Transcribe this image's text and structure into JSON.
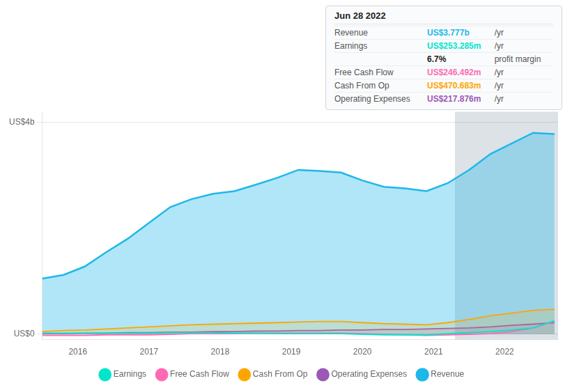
{
  "chart_data": {
    "type": "line",
    "x": [
      2015.5,
      2015.8,
      2016.1,
      2016.4,
      2016.7,
      2017.0,
      2017.3,
      2017.6,
      2017.9,
      2018.2,
      2018.5,
      2018.8,
      2019.1,
      2019.4,
      2019.7,
      2020.0,
      2020.3,
      2020.6,
      2020.9,
      2021.2,
      2021.5,
      2021.8,
      2022.1,
      2022.4,
      2022.7
    ],
    "xlim": [
      2015.5,
      2022.75
    ],
    "xticks": [
      2016,
      2017,
      2018,
      2019,
      2020,
      2021,
      2022
    ],
    "ylim": [
      -0.1,
      4.2
    ],
    "yticks": [
      {
        "value": 0,
        "label": "US$0"
      },
      {
        "value": 4,
        "label": "US$4b"
      }
    ],
    "grid": true,
    "legend": "bottom",
    "series": [
      {
        "name": "Revenue",
        "color": "#1eb8e8",
        "values": [
          1.05,
          1.12,
          1.28,
          1.55,
          1.8,
          2.1,
          2.4,
          2.55,
          2.65,
          2.7,
          2.82,
          2.95,
          3.1,
          3.08,
          3.05,
          2.9,
          2.78,
          2.75,
          2.7,
          2.85,
          3.1,
          3.4,
          3.6,
          3.8,
          3.777
        ]
      },
      {
        "name": "Earnings",
        "color": "#00e5cc",
        "values": [
          0.02,
          0.02,
          0.02,
          0.02,
          0.02,
          0.02,
          0.03,
          0.03,
          0.03,
          0.02,
          0.02,
          0.01,
          0.01,
          0.01,
          0.01,
          0.0,
          -0.01,
          -0.01,
          -0.01,
          0.01,
          0.03,
          0.05,
          0.08,
          0.12,
          0.253
        ]
      },
      {
        "name": "Free Cash Flow",
        "color": "#ff69b4",
        "values": [
          -0.02,
          -0.02,
          -0.02,
          -0.01,
          -0.01,
          -0.01,
          0.0,
          0.01,
          0.01,
          0.01,
          0.02,
          0.02,
          0.02,
          0.02,
          0.02,
          0.01,
          0.0,
          -0.01,
          -0.02,
          -0.01,
          0.0,
          0.01,
          0.05,
          0.12,
          0.246
        ]
      },
      {
        "name": "Cash From Op",
        "color": "#ffa500",
        "values": [
          0.05,
          0.07,
          0.08,
          0.1,
          0.12,
          0.14,
          0.16,
          0.18,
          0.19,
          0.2,
          0.21,
          0.22,
          0.23,
          0.24,
          0.24,
          0.22,
          0.2,
          0.19,
          0.18,
          0.22,
          0.28,
          0.35,
          0.4,
          0.45,
          0.471
        ]
      },
      {
        "name": "Operating Expenses",
        "color": "#9b59b6",
        "values": [
          0.01,
          0.01,
          0.02,
          0.02,
          0.03,
          0.03,
          0.04,
          0.04,
          0.05,
          0.05,
          0.06,
          0.06,
          0.07,
          0.07,
          0.08,
          0.08,
          0.09,
          0.09,
          0.1,
          0.11,
          0.12,
          0.14,
          0.17,
          0.19,
          0.218
        ]
      }
    ],
    "highlight": {
      "x": [
        2021.3,
        2022.75
      ],
      "color": "#1e3a5f"
    },
    "annotations": {
      "title": "Jun 28 2022",
      "rows": [
        [
          "Revenue",
          "US$3.777b",
          "/yr"
        ],
        [
          "Earnings",
          "US$253.285m",
          "/yr"
        ],
        [
          "6.7%",
          "profit margin"
        ],
        [
          "Free Cash Flow",
          "US$246.492m",
          "/yr"
        ],
        [
          "Cash From Op",
          "US$470.683m",
          "/yr"
        ],
        [
          "Operating Expenses",
          "US$217.876m",
          "/yr"
        ]
      ]
    }
  }
}
